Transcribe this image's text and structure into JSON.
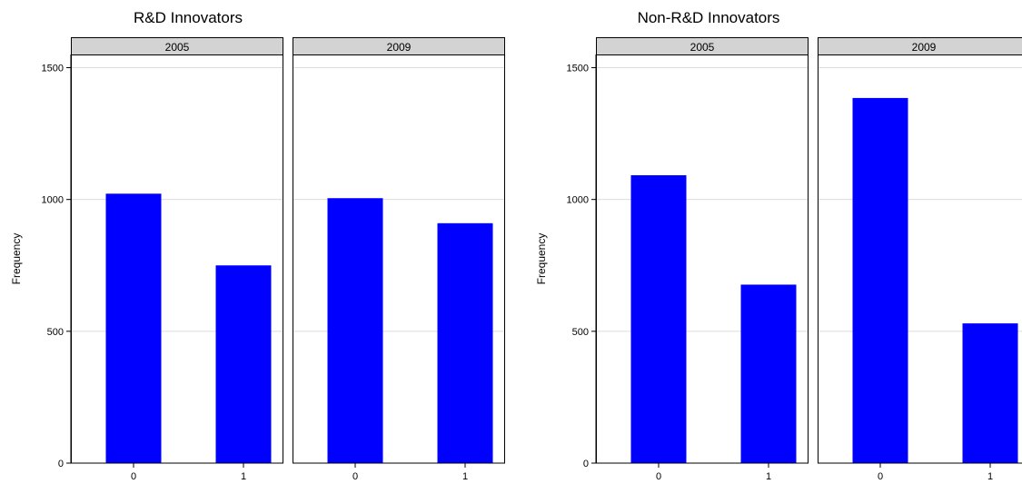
{
  "chart_data": [
    {
      "type": "bar",
      "title": "R&D Innovators",
      "ylabel": "Frequency",
      "xlabel": "",
      "ylim": [
        0,
        1550
      ],
      "yticks": [
        0,
        500,
        1000,
        1500
      ],
      "grid": true,
      "bar_color": "#0000ff",
      "panels": [
        {
          "label": "2005",
          "categories": [
            "0",
            "1"
          ],
          "values": [
            1022,
            750
          ]
        },
        {
          "label": "2009",
          "categories": [
            "0",
            "1"
          ],
          "values": [
            1005,
            910
          ]
        }
      ]
    },
    {
      "type": "bar",
      "title": "Non-R&D Innovators",
      "ylabel": "Frequency",
      "xlabel": "",
      "ylim": [
        0,
        1550
      ],
      "yticks": [
        0,
        500,
        1000,
        1500
      ],
      "grid": true,
      "bar_color": "#0000ff",
      "panels": [
        {
          "label": "2005",
          "categories": [
            "0",
            "1"
          ],
          "values": [
            1092,
            677
          ]
        },
        {
          "label": "2009",
          "categories": [
            "0",
            "1"
          ],
          "values": [
            1385,
            530
          ]
        }
      ]
    }
  ]
}
